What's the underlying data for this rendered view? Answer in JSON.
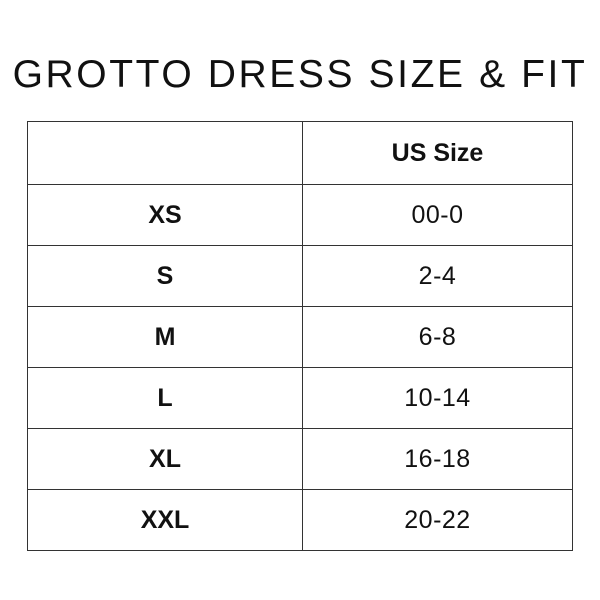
{
  "title": "GROTTO DRESS SIZE & FIT",
  "table": {
    "headers": [
      "",
      "US Size"
    ],
    "rows": [
      {
        "size": "XS",
        "us": "00-0"
      },
      {
        "size": "S",
        "us": "2-4"
      },
      {
        "size": "M",
        "us": "6-8"
      },
      {
        "size": "L",
        "us": "10-14"
      },
      {
        "size": "XL",
        "us": "16-18"
      },
      {
        "size": "XXL",
        "us": "20-22"
      }
    ]
  }
}
